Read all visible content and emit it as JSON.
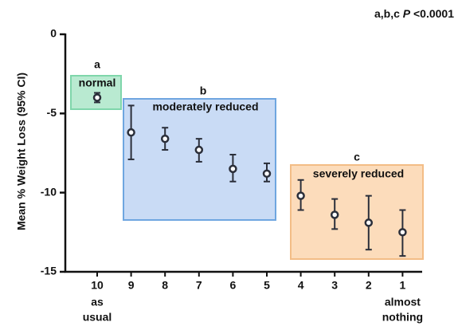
{
  "chart_data": {
    "type": "errorbar",
    "y_label": "Mean % Weight Loss (95% CI)",
    "annotation": {
      "prefix": "a,b,c",
      "italic": "P",
      "suffix": "<0.0001"
    },
    "categories": [
      "10",
      "9",
      "8",
      "7",
      "6",
      "5",
      "4",
      "3",
      "2",
      "1"
    ],
    "x_sublabels": [
      [
        "as",
        "usual"
      ],
      null,
      null,
      null,
      null,
      null,
      null,
      null,
      null,
      [
        "almost",
        "nothing"
      ]
    ],
    "values": [
      -4.0,
      -6.2,
      -6.6,
      -7.3,
      -8.5,
      -8.8,
      -10.2,
      -11.4,
      -11.9,
      -12.5
    ],
    "low": [
      -4.3,
      -7.9,
      -7.3,
      -8.05,
      -9.3,
      -9.3,
      -11.1,
      -12.3,
      -13.6,
      -14.0
    ],
    "high": [
      -3.7,
      -4.5,
      -5.9,
      -6.6,
      -7.6,
      -8.15,
      -9.2,
      -10.4,
      -10.2,
      -11.1
    ],
    "color": "#2b2f3a",
    "groups": [
      {
        "letter": "a",
        "label": "normal"
      },
      {
        "letter": "b",
        "label": "moderately reduced"
      },
      {
        "letter": "c",
        "label": "severely reduced"
      }
    ],
    "ylim": [
      0,
      -15
    ],
    "yticks": [
      0,
      -5,
      -10,
      -15
    ]
  }
}
